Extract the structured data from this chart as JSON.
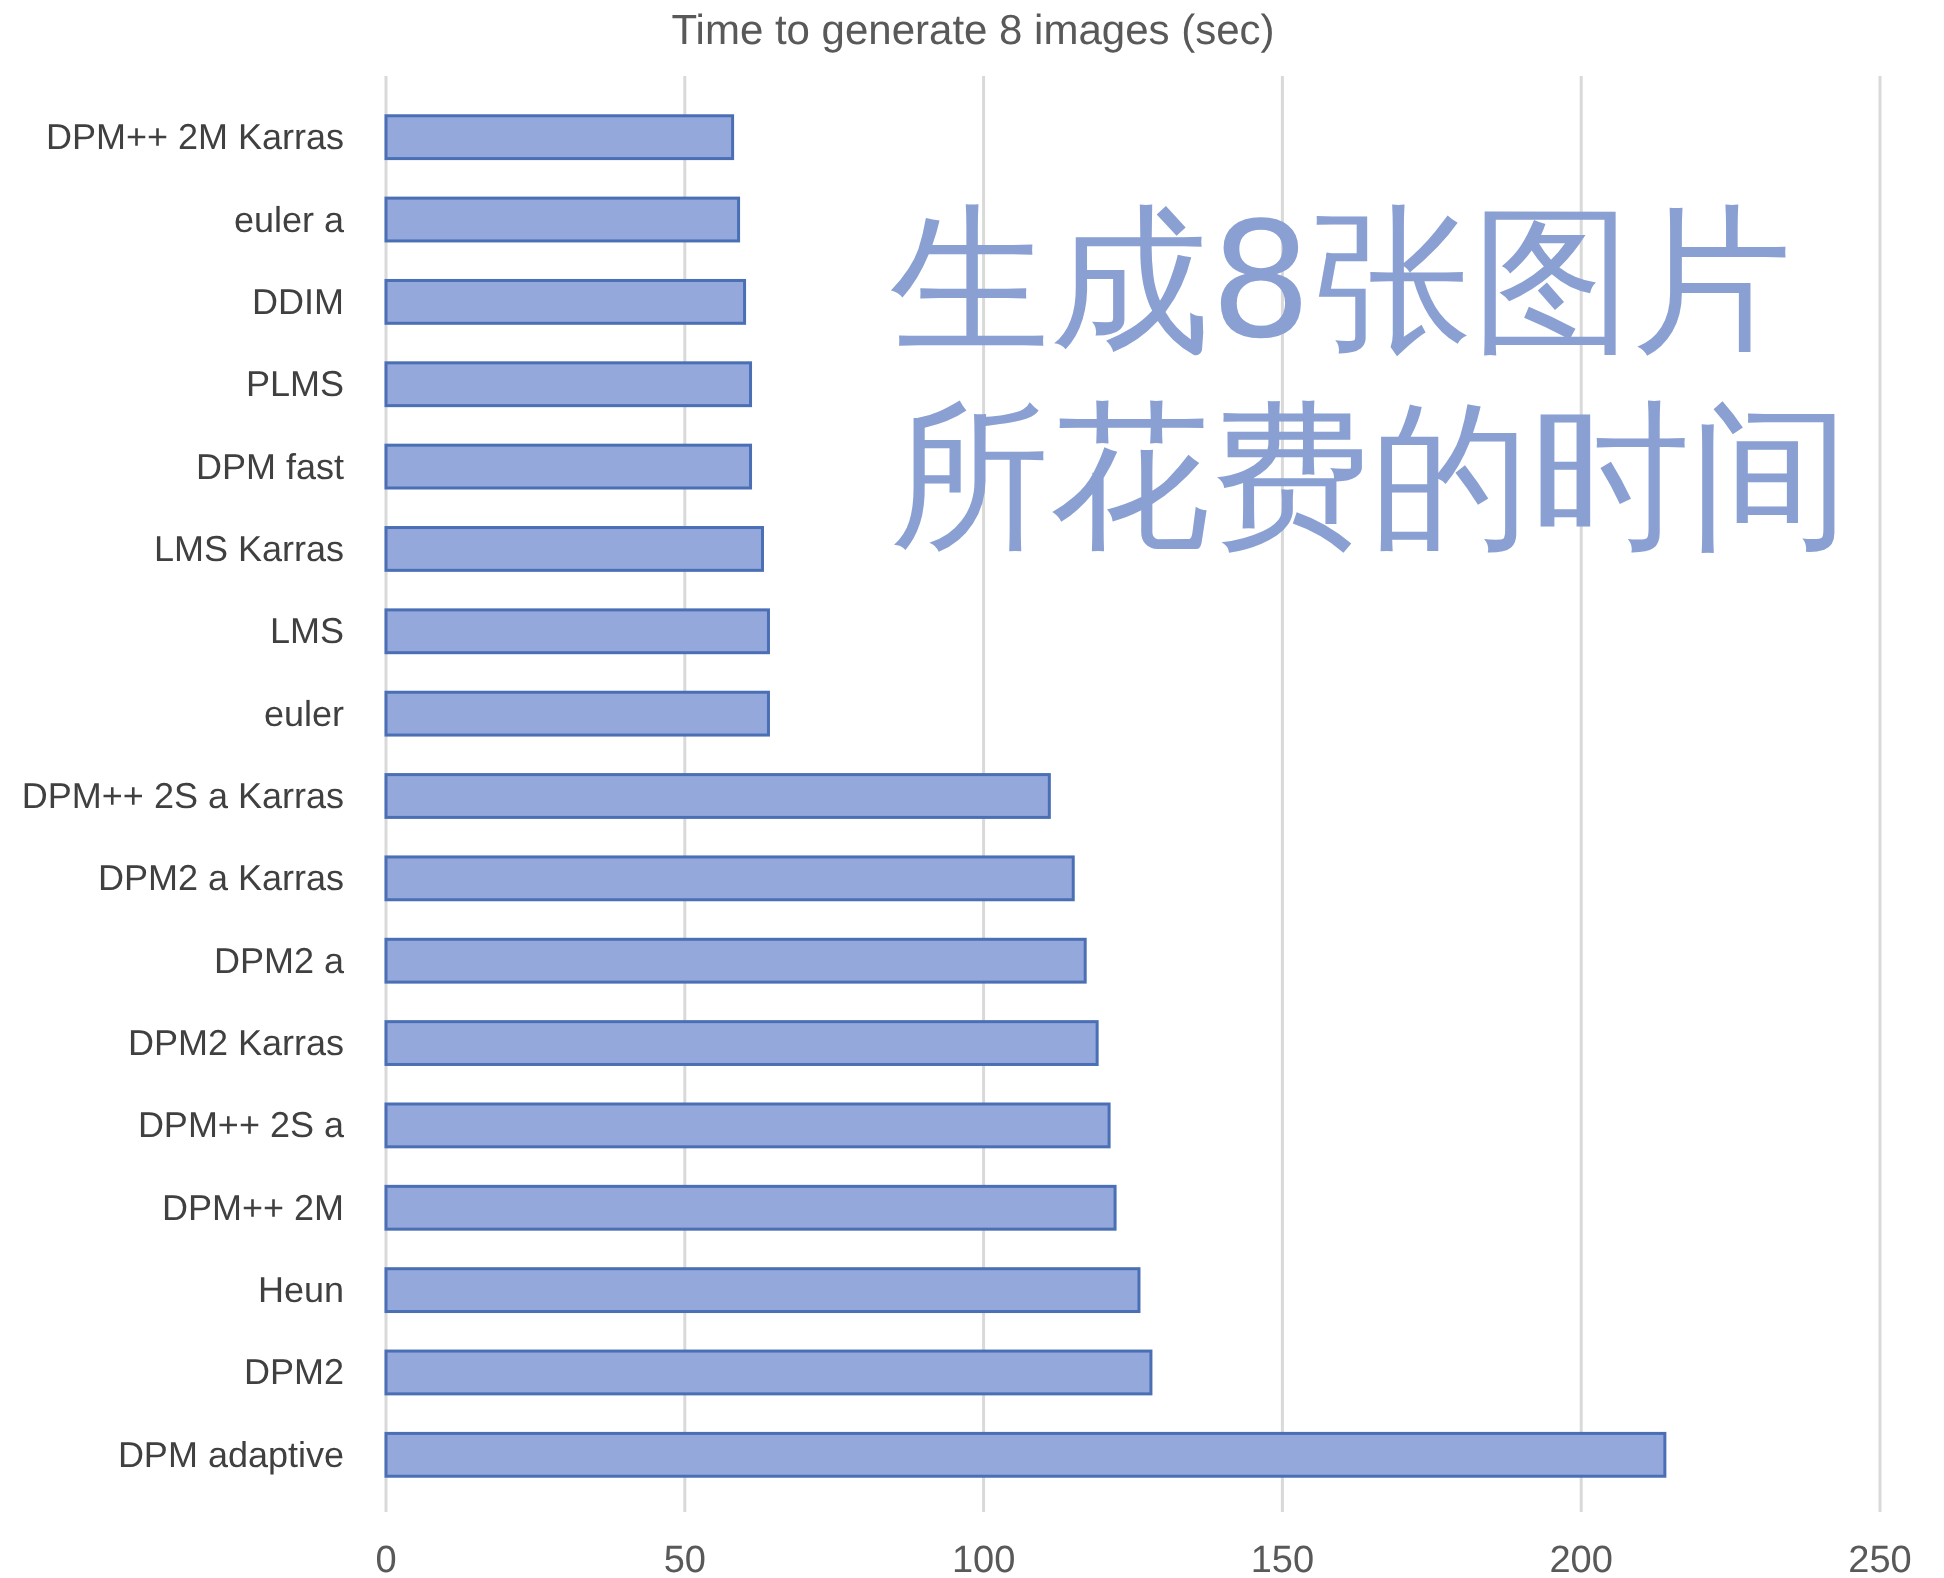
{
  "chart_data": {
    "type": "bar",
    "orientation": "horizontal",
    "title": "Time to generate 8 images (sec)",
    "categories": [
      "DPM++ 2M Karras",
      "euler a",
      "DDIM",
      "PLMS",
      "DPM fast",
      "LMS Karras",
      "LMS",
      "euler",
      "DPM++ 2S a Karras",
      "DPM2 a Karras",
      "DPM2 a",
      "DPM2 Karras",
      "DPM++ 2S a",
      "DPM++ 2M",
      "Heun",
      "DPM2",
      "DPM adaptive"
    ],
    "values": [
      58,
      59,
      60,
      61,
      61,
      63,
      64,
      64,
      111,
      115,
      117,
      119,
      121,
      122,
      126,
      128,
      214
    ],
    "color": "#94a8dc",
    "xlim": [
      0,
      250
    ],
    "xticks": [
      0,
      50,
      100,
      150,
      200,
      250
    ],
    "grid": "x",
    "annotations": [
      "生成8张图片所花费的时间"
    ]
  }
}
